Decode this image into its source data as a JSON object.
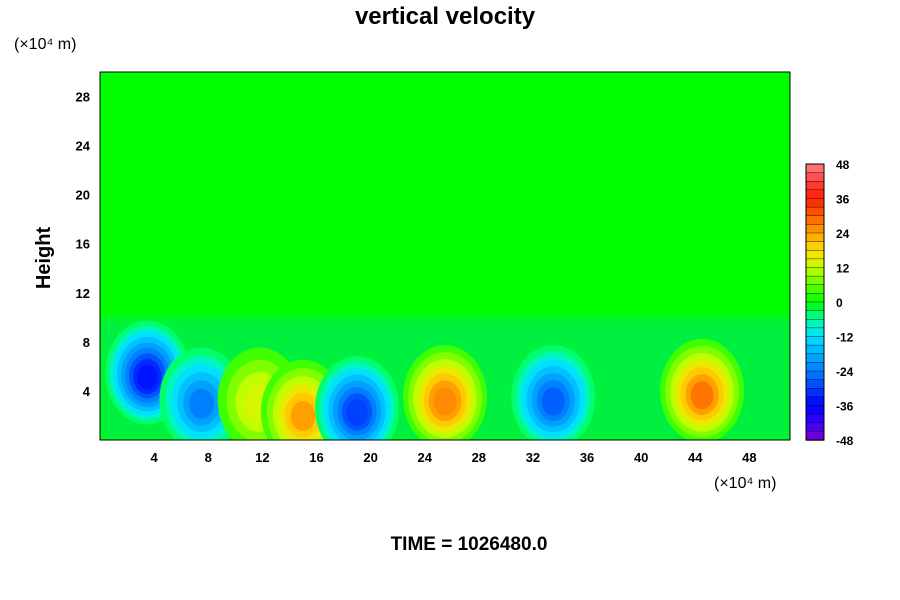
{
  "chart_data": {
    "type": "heatmap",
    "title": "vertical velocity",
    "xlabel": "",
    "ylabel": "Height",
    "x_unit": "(×10⁴ m)",
    "y_unit": "(×10⁴ m)",
    "x_ticks": [
      4,
      8,
      12,
      16,
      20,
      24,
      28,
      32,
      36,
      40,
      44,
      48
    ],
    "y_ticks": [
      4,
      8,
      12,
      16,
      20,
      24,
      28
    ],
    "xlim": [
      0,
      51
    ],
    "ylim": [
      0,
      30
    ],
    "colorbar": {
      "ticks": [
        48,
        36,
        24,
        12,
        0,
        -12,
        -24,
        -36,
        -48
      ],
      "range": [
        -48,
        48
      ]
    },
    "features": [
      {
        "x": 3.5,
        "y": 5.5,
        "value": -34
      },
      {
        "x": 7.5,
        "y": 3.3,
        "value": -24
      },
      {
        "x": 11.8,
        "y": 3.3,
        "value": 14
      },
      {
        "x": 15.0,
        "y": 2.3,
        "value": 24
      },
      {
        "x": 19.0,
        "y": 2.6,
        "value": -30
      },
      {
        "x": 25.5,
        "y": 3.5,
        "value": 26
      },
      {
        "x": 33.5,
        "y": 3.5,
        "value": -27
      },
      {
        "x": 44.5,
        "y": 4.0,
        "value": 28
      }
    ],
    "footer": "TIME = 1026480.0"
  }
}
